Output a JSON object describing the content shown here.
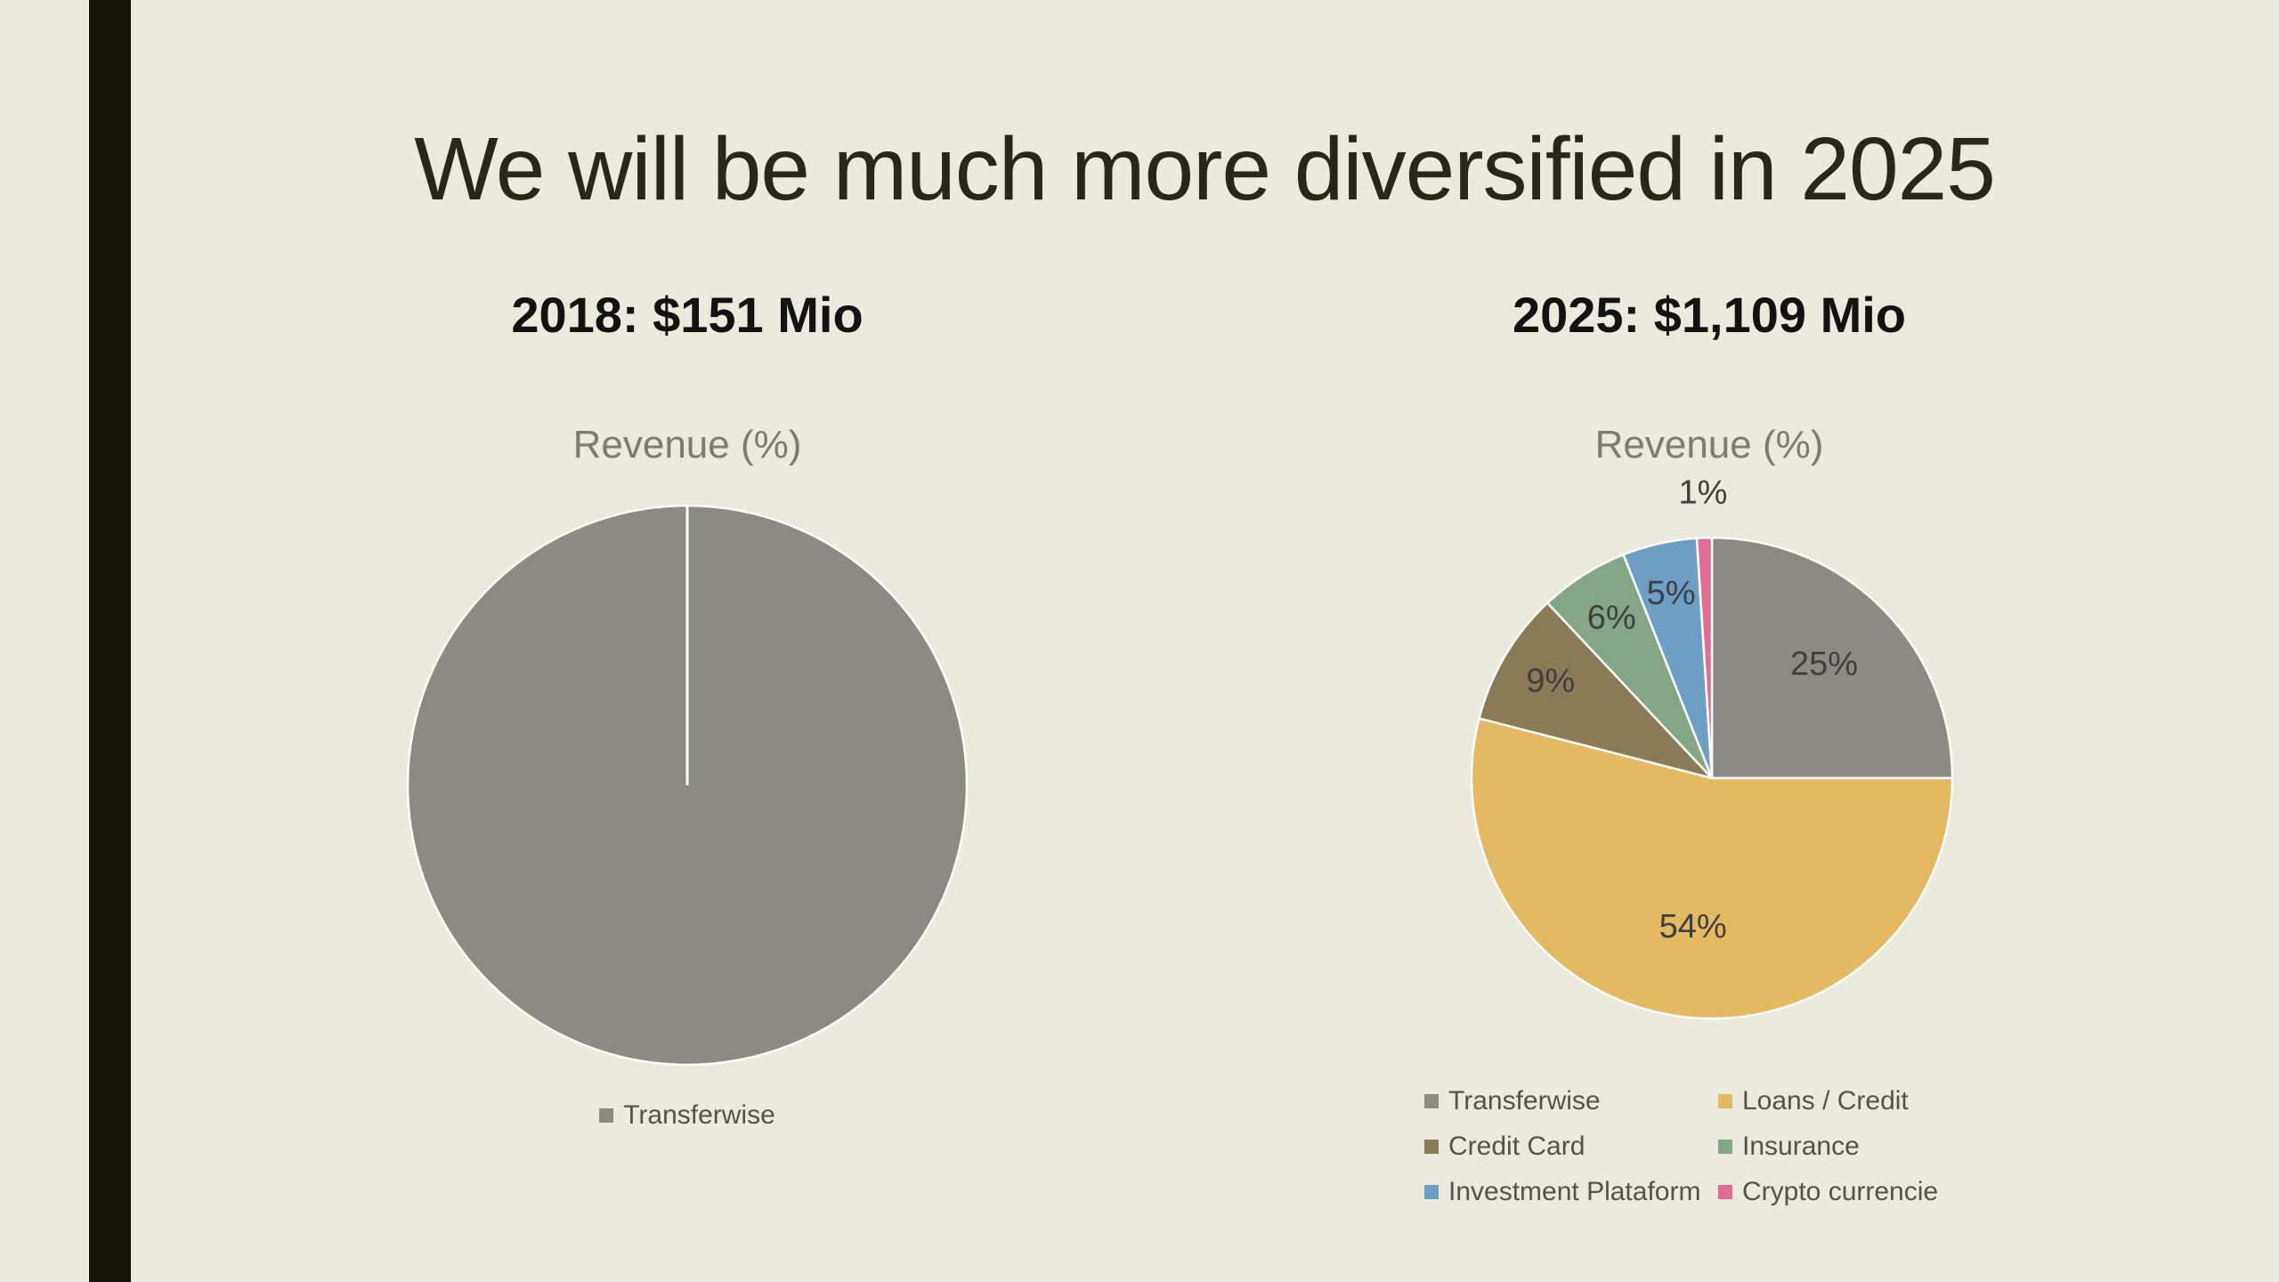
{
  "slide": {
    "title": "We will be much more diversified in 2025",
    "background_color": "#ECE9DD",
    "accent_bar_color": "#15120A"
  },
  "chart_data": [
    {
      "type": "pie",
      "subtitle": "2018: $151 Mio",
      "title": "Revenue (%)",
      "labels": [
        "Transferwise"
      ],
      "values": [
        100
      ],
      "colors": [
        "#8B8B83"
      ],
      "data_labels": null,
      "legend_position": "bottom",
      "legend_columns": 1
    },
    {
      "type": "pie",
      "subtitle": "2025: $1,109 Mio",
      "title": "Revenue (%)",
      "labels": [
        "Transferwise",
        "Loans / Credit",
        "Credit Card",
        "Insurance",
        "Investment Plataform",
        "Crypto currencie"
      ],
      "values": [
        25,
        54,
        9,
        6,
        5,
        1
      ],
      "colors": [
        "#8B8B83",
        "#E5B961",
        "#8A7A55",
        "#83A786",
        "#6D9EC6",
        "#E26B96"
      ],
      "data_labels": [
        "25%",
        "54%",
        "9%",
        "6%",
        "5%",
        "1%"
      ],
      "legend_position": "bottom",
      "legend_columns": 2
    }
  ]
}
